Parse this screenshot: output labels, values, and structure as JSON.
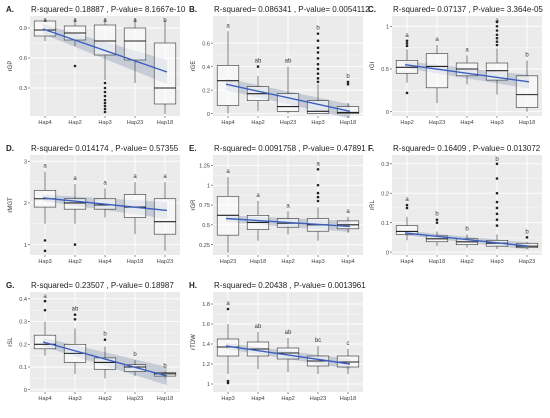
{
  "figure": {
    "background": "#ffffff",
    "panel_bg": "#ebebeb",
    "grid": "#ffffff",
    "fit_line": "#3b5fc0",
    "ci_band": "#b9c2cf"
  },
  "chart_data": [
    {
      "type": "box",
      "letter": "A.",
      "title": "R-squared= 0.18887 , P-value= 8.1667e-10",
      "ylabel": "rGP",
      "ylim": [
        0.02,
        1.02
      ],
      "yticks": [
        0.3,
        0.6,
        0.9
      ],
      "categories": [
        "Hap4",
        "Hap2",
        "Hap3",
        "Hap23",
        "Hap18"
      ],
      "boxes": [
        {
          "q1": 0.82,
          "med": 0.88,
          "q3": 0.97,
          "lo": 0.77,
          "hi": 1.0,
          "out": [],
          "letter": "a"
        },
        {
          "q1": 0.78,
          "med": 0.85,
          "q3": 0.92,
          "lo": 0.72,
          "hi": 1.0,
          "out": [
            0.52
          ],
          "letter": "a"
        },
        {
          "q1": 0.63,
          "med": 0.77,
          "q3": 0.93,
          "lo": 0.38,
          "hi": 1.0,
          "out": [
            0.35,
            0.3,
            0.26,
            0.22,
            0.18,
            0.15,
            0.12,
            0.09,
            0.06
          ],
          "letter": "a"
        },
        {
          "q1": 0.58,
          "med": 0.77,
          "q3": 0.9,
          "lo": 0.35,
          "hi": 1.0,
          "out": [],
          "letter": "a"
        },
        {
          "q1": 0.14,
          "med": 0.3,
          "q3": 0.75,
          "lo": 0.04,
          "hi": 0.98,
          "out": [],
          "letter": "b"
        }
      ],
      "fit": [
        0.89,
        0.46
      ],
      "band": [
        0.05,
        0.12
      ]
    },
    {
      "type": "box",
      "letter": "B.",
      "title": "R-squared= 0.086341 , P-value= 0.0054112",
      "ylabel": "rGE",
      "ylim": [
        -0.02,
        0.83
      ],
      "yticks": [
        0.0,
        0.2,
        0.4,
        0.6
      ],
      "categories": [
        "Hap4",
        "Hap2",
        "Hap23",
        "Hap3",
        "Hap18"
      ],
      "boxes": [
        {
          "q1": 0.07,
          "med": 0.28,
          "q3": 0.41,
          "lo": 0.0,
          "hi": 0.7,
          "out": [],
          "letter": "a"
        },
        {
          "q1": 0.11,
          "med": 0.17,
          "q3": 0.23,
          "lo": 0.02,
          "hi": 0.32,
          "out": [
            0.4
          ],
          "letter": "ab"
        },
        {
          "q1": 0.02,
          "med": 0.06,
          "q3": 0.17,
          "lo": 0.0,
          "hi": 0.4,
          "out": [],
          "letter": "ab"
        },
        {
          "q1": 0.0,
          "med": 0.02,
          "q3": 0.11,
          "lo": 0.0,
          "hi": 0.25,
          "out": [
            0.27,
            0.3,
            0.34,
            0.38,
            0.42,
            0.47,
            0.52,
            0.56,
            0.62,
            0.68
          ],
          "letter": "b"
        },
        {
          "q1": 0.0,
          "med": 0.01,
          "q3": 0.06,
          "lo": 0.0,
          "hi": 0.09,
          "out": [
            0.25,
            0.27
          ],
          "letter": "b"
        }
      ],
      "fit": [
        0.25,
        0.02
      ],
      "band": [
        0.05,
        0.06
      ]
    },
    {
      "type": "box",
      "letter": "C.",
      "title": "R-squared= 0.07137 , P-value= 3.364e-05",
      "ylabel": "rGI",
      "ylim": [
        -0.05,
        1.12
      ],
      "yticks": [
        0.0,
        0.5,
        1.0
      ],
      "categories": [
        "Hap2",
        "Hap23",
        "Hap4",
        "Hap3",
        "Hap18"
      ],
      "boxes": [
        {
          "q1": 0.45,
          "med": 0.52,
          "q3": 0.6,
          "lo": 0.34,
          "hi": 0.73,
          "out": [
            0.22,
            0.77,
            0.8,
            0.83
          ],
          "letter": "a"
        },
        {
          "q1": 0.28,
          "med": 0.53,
          "q3": 0.68,
          "lo": 0.1,
          "hi": 0.78,
          "out": [],
          "letter": "a"
        },
        {
          "q1": 0.42,
          "med": 0.5,
          "q3": 0.57,
          "lo": 0.32,
          "hi": 0.66,
          "out": [],
          "letter": "a"
        },
        {
          "q1": 0.37,
          "med": 0.48,
          "q3": 0.57,
          "lo": 0.2,
          "hi": 0.74,
          "out": [
            0.78,
            0.82,
            0.86,
            0.9,
            0.95,
            1.0,
            1.05
          ],
          "letter": "a"
        },
        {
          "q1": 0.05,
          "med": 0.2,
          "q3": 0.42,
          "lo": 0.0,
          "hi": 0.6,
          "out": [],
          "letter": "b"
        }
      ],
      "fit": [
        0.55,
        0.35
      ],
      "band": [
        0.04,
        0.08
      ]
    },
    {
      "type": "box",
      "letter": "D.",
      "title": "R-squared= 0.014174 , P-value= 0.57355",
      "ylabel": "rMGT",
      "ylim": [
        0.75,
        3.15
      ],
      "yticks": [
        1,
        2,
        3
      ],
      "categories": [
        "Hap3",
        "Hap2",
        "Hap4",
        "Hap18",
        "Hap23"
      ],
      "boxes": [
        {
          "q1": 1.9,
          "med": 2.1,
          "q3": 2.3,
          "lo": 1.5,
          "hi": 2.75,
          "out": [
            1.1,
            0.85
          ],
          "letter": "a"
        },
        {
          "q1": 1.85,
          "med": 2.0,
          "q3": 2.1,
          "lo": 1.5,
          "hi": 2.45,
          "out": [
            1.0
          ],
          "letter": "a"
        },
        {
          "q1": 1.85,
          "med": 1.95,
          "q3": 2.1,
          "lo": 1.65,
          "hi": 2.35,
          "out": [],
          "letter": "a"
        },
        {
          "q1": 1.65,
          "med": 1.9,
          "q3": 2.2,
          "lo": 1.25,
          "hi": 2.5,
          "out": [],
          "letter": "a"
        },
        {
          "q1": 1.25,
          "med": 1.55,
          "q3": 2.1,
          "lo": 0.85,
          "hi": 2.5,
          "out": [],
          "letter": "a"
        }
      ],
      "fit": [
        2.12,
        1.82
      ],
      "band": [
        0.08,
        0.2
      ]
    },
    {
      "type": "box",
      "letter": "E.",
      "title": "R-squared= 0.0091758 , P-value= 0.47891",
      "ylabel": "rGR",
      "ylim": [
        0.12,
        1.38
      ],
      "yticks": [
        0.25,
        0.5,
        0.75,
        1.0,
        1.25
      ],
      "categories": [
        "Hap23",
        "Hap18",
        "Hap2",
        "Hap3",
        "Hap4"
      ],
      "boxes": [
        {
          "q1": 0.37,
          "med": 0.62,
          "q3": 0.86,
          "lo": 0.15,
          "hi": 1.1,
          "out": [],
          "letter": "a"
        },
        {
          "q1": 0.44,
          "med": 0.53,
          "q3": 0.62,
          "lo": 0.3,
          "hi": 0.8,
          "out": [],
          "letter": "a"
        },
        {
          "q1": 0.47,
          "med": 0.52,
          "q3": 0.58,
          "lo": 0.38,
          "hi": 0.67,
          "out": [],
          "letter": "a"
        },
        {
          "q1": 0.42,
          "med": 0.5,
          "q3": 0.58,
          "lo": 0.3,
          "hi": 0.72,
          "out": [
            0.8,
            0.85,
            0.9,
            1.0,
            1.2
          ],
          "letter": "a"
        },
        {
          "q1": 0.45,
          "med": 0.5,
          "q3": 0.55,
          "lo": 0.4,
          "hi": 0.6,
          "out": [],
          "letter": "a"
        }
      ],
      "fit": [
        0.58,
        0.48
      ],
      "band": [
        0.04,
        0.07
      ]
    },
    {
      "type": "box",
      "letter": "F.",
      "title": "R-squared= 0.16409 , P-value= 0.013072",
      "ylabel": "rRL",
      "ylim": [
        -0.01,
        0.33
      ],
      "yticks": [
        0.0,
        0.1,
        0.2,
        0.3
      ],
      "categories": [
        "Hap4",
        "Hap18",
        "Hap2",
        "Hap3",
        "Hap23"
      ],
      "boxes": [
        {
          "q1": 0.06,
          "med": 0.07,
          "q3": 0.09,
          "lo": 0.04,
          "hi": 0.12,
          "out": [
            0.15,
            0.16
          ],
          "letter": "a"
        },
        {
          "q1": 0.035,
          "med": 0.045,
          "q3": 0.055,
          "lo": 0.02,
          "hi": 0.07,
          "out": [
            0.1,
            0.11
          ],
          "letter": "b"
        },
        {
          "q1": 0.025,
          "med": 0.035,
          "q3": 0.045,
          "lo": 0.015,
          "hi": 0.06,
          "out": [],
          "letter": "b"
        },
        {
          "q1": 0.02,
          "med": 0.03,
          "q3": 0.04,
          "lo": 0.01,
          "hi": 0.06,
          "out": [
            0.09,
            0.11,
            0.13,
            0.15,
            0.17,
            0.2,
            0.25,
            0.3
          ],
          "letter": "b"
        },
        {
          "q1": 0.015,
          "med": 0.02,
          "q3": 0.03,
          "lo": 0.01,
          "hi": 0.035,
          "out": [
            0.05
          ],
          "letter": "b"
        }
      ],
      "fit": [
        0.065,
        0.02
      ],
      "band": [
        0.008,
        0.012
      ]
    },
    {
      "type": "box",
      "letter": "G.",
      "title": "R-squared= 0.23507 , P-value= 0.18987",
      "ylabel": "rSL",
      "ylim": [
        -0.01,
        0.43
      ],
      "yticks": [
        0.0,
        0.1,
        0.2,
        0.3,
        0.4
      ],
      "categories": [
        "Hap4",
        "Hap3",
        "Hap2",
        "Hap23",
        "Hap18"
      ],
      "boxes": [
        {
          "q1": 0.18,
          "med": 0.2,
          "q3": 0.24,
          "lo": 0.15,
          "hi": 0.3,
          "out": [
            0.35,
            0.39
          ],
          "letter": "a"
        },
        {
          "q1": 0.12,
          "med": 0.16,
          "q3": 0.2,
          "lo": 0.07,
          "hi": 0.27,
          "out": [
            0.31,
            0.33
          ],
          "letter": "ab"
        },
        {
          "q1": 0.09,
          "med": 0.12,
          "q3": 0.14,
          "lo": 0.05,
          "hi": 0.19,
          "out": [
            0.22
          ],
          "letter": "b"
        },
        {
          "q1": 0.08,
          "med": 0.1,
          "q3": 0.11,
          "lo": 0.06,
          "hi": 0.13,
          "out": [],
          "letter": "b"
        },
        {
          "q1": 0.06,
          "med": 0.07,
          "q3": 0.075,
          "lo": 0.05,
          "hi": 0.08,
          "out": [],
          "letter": "b"
        }
      ],
      "fit": [
        0.21,
        0.06
      ],
      "band": [
        0.02,
        0.04
      ]
    },
    {
      "type": "box",
      "letter": "H.",
      "title": "R-squared= 0.20438 , P-value= 0.0013961",
      "ylabel": "rTDW",
      "ylim": [
        0.92,
        1.92
      ],
      "yticks": [
        1.0,
        1.2,
        1.4,
        1.6,
        1.8
      ],
      "categories": [
        "Hap3",
        "Hap4",
        "Hap2",
        "Hap23",
        "Hap18"
      ],
      "boxes": [
        {
          "q1": 1.28,
          "med": 1.37,
          "q3": 1.45,
          "lo": 1.1,
          "hi": 1.6,
          "out": [
            1.03,
            1.01,
            1.75
          ],
          "letter": "a"
        },
        {
          "q1": 1.28,
          "med": 1.35,
          "q3": 1.42,
          "lo": 1.15,
          "hi": 1.52,
          "out": [],
          "letter": "ab"
        },
        {
          "q1": 1.25,
          "med": 1.31,
          "q3": 1.36,
          "lo": 1.12,
          "hi": 1.46,
          "out": [],
          "letter": "ab"
        },
        {
          "q1": 1.18,
          "med": 1.23,
          "q3": 1.28,
          "lo": 1.1,
          "hi": 1.38,
          "out": [],
          "letter": "bc"
        },
        {
          "q1": 1.17,
          "med": 1.22,
          "q3": 1.28,
          "lo": 1.1,
          "hi": 1.35,
          "out": [],
          "letter": "c"
        }
      ],
      "fit": [
        1.38,
        1.2
      ],
      "band": [
        0.03,
        0.05
      ]
    }
  ]
}
